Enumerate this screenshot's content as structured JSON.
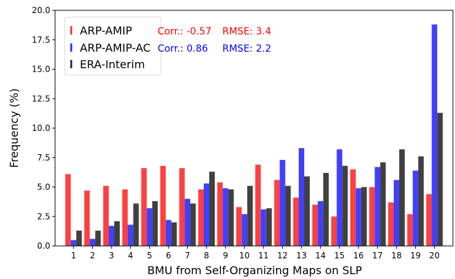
{
  "chart_data": {
    "type": "bar",
    "categories": [
      "1",
      "2",
      "3",
      "4",
      "5",
      "6",
      "7",
      "8",
      "9",
      "10",
      "11",
      "12",
      "13",
      "14",
      "15",
      "16",
      "17",
      "18",
      "19",
      "20"
    ],
    "series": [
      {
        "name": "ARP-AMIP",
        "color": "#ff4040",
        "values": [
          6.1,
          4.7,
          5.1,
          4.8,
          6.6,
          6.8,
          6.6,
          4.8,
          5.4,
          3.3,
          6.9,
          5.6,
          4.1,
          3.5,
          2.5,
          6.5,
          5.0,
          3.7,
          2.7,
          4.4
        ]
      },
      {
        "name": "ARP-AMIP-AC",
        "color": "#4040ff",
        "values": [
          0.5,
          0.6,
          1.7,
          1.8,
          3.2,
          2.2,
          4.0,
          5.3,
          4.9,
          2.7,
          3.1,
          7.3,
          8.3,
          3.8,
          8.2,
          4.9,
          6.7,
          5.6,
          6.4,
          18.8
        ]
      },
      {
        "name": "ERA-Interim",
        "color": "#404040",
        "values": [
          1.3,
          1.3,
          2.1,
          3.6,
          3.8,
          2.0,
          3.6,
          6.3,
          4.8,
          5.1,
          3.2,
          5.1,
          5.9,
          6.2,
          6.8,
          5.0,
          7.1,
          8.2,
          7.6,
          11.3
        ]
      }
    ],
    "xlabel": "BMU from Self-Organizing Maps on SLP",
    "ylabel": "Frequency (%)",
    "ylim": [
      0,
      20
    ],
    "yticks": [
      "0.0",
      "2.5",
      "5.0",
      "7.5",
      "10.0",
      "12.5",
      "15.0",
      "17.5",
      "20.0"
    ],
    "legend": {
      "placement": "top-left",
      "stats": [
        {
          "corr": "Corr.: -0.57",
          "rmse": "RMSE: 3.4",
          "color": "#ff0000"
        },
        {
          "corr": "Corr.: 0.86",
          "rmse": "RMSE: 2.2",
          "color": "#0000ff"
        }
      ]
    },
    "grid": false
  }
}
